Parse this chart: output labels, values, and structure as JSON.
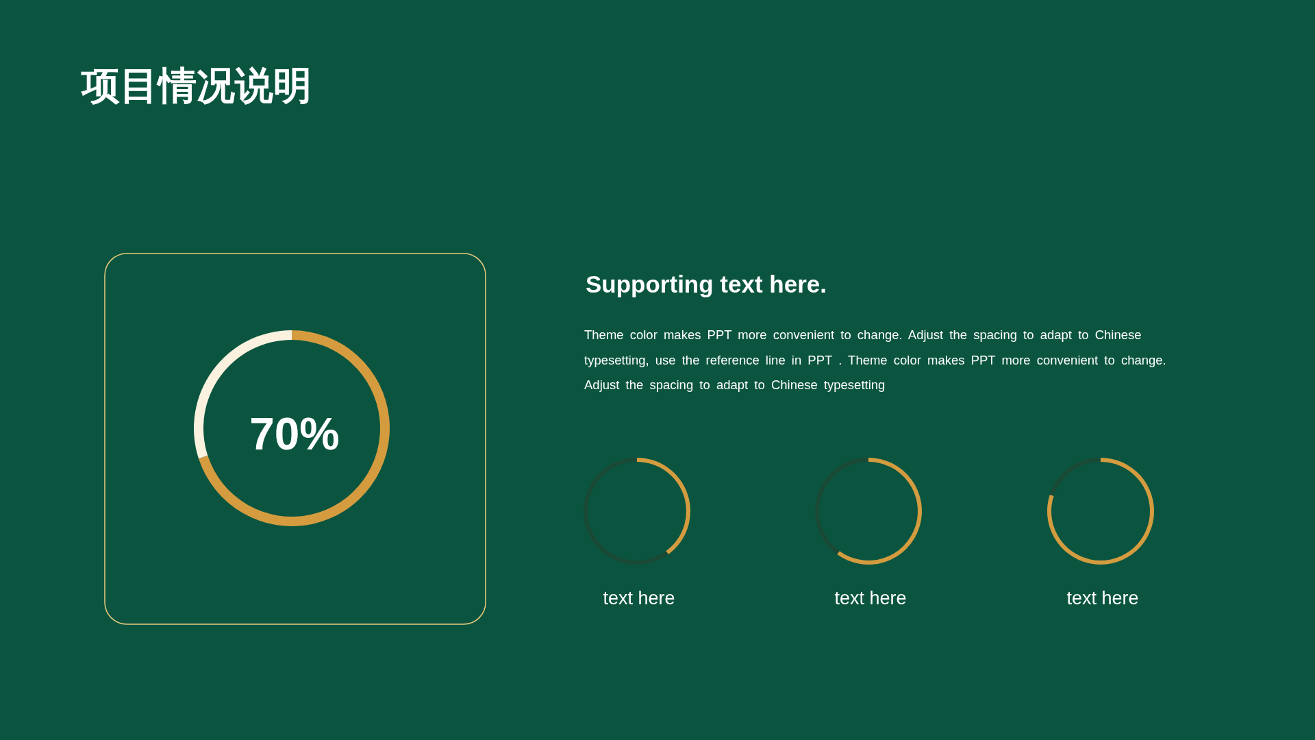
{
  "chart_data": [
    {
      "type": "other",
      "title": "项目情况说明"
    },
    {
      "type": "donut",
      "categories": [
        null,
        null
      ],
      "values": [
        70,
        30
      ],
      "colors": [
        "#d49c3f",
        "#faf1df"
      ],
      "value_labels": [
        "70%",
        null
      ]
    },
    {
      "type": "other",
      "title": "Supporting text here.",
      "annotations": [
        "Theme color makes PPT more convenient to change. Adjust the spacing to adapt to Chinese typesetting, use the reference line in PPT . Theme color makes PPT more convenient to change. Adjust the spacing to adapt to Chinese typesetting"
      ]
    },
    {
      "type": "donut",
      "title": "text here",
      "categories": [
        null,
        null
      ],
      "values": [
        40,
        60
      ],
      "colors": [
        "#d49c3f",
        "#1a4a36"
      ]
    },
    {
      "type": "donut",
      "title": "text here",
      "categories": [
        null,
        null
      ],
      "values": [
        60,
        40
      ],
      "colors": [
        "#d49c3f",
        "#1a4a36"
      ]
    },
    {
      "type": "donut",
      "title": "text here",
      "categories": [
        null,
        null
      ],
      "values": [
        80,
        20
      ],
      "colors": [
        "#d49c3f",
        "#1a4a36"
      ]
    }
  ]
}
